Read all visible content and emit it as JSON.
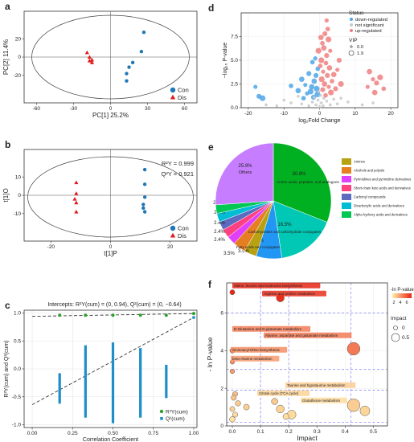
{
  "panel_labels": [
    "a",
    "b",
    "c",
    "d",
    "e",
    "f"
  ],
  "colors": {
    "con": "#1f77b4",
    "dis": "#e31a1c",
    "down": "#4fa6e8",
    "ns": "#c8c8c8",
    "up": "#f08080",
    "r2y": "#2ca02c",
    "q2": "#1f8fc8",
    "pie_palette": [
      "#b8a214",
      "#e67e22",
      "#e040fb",
      "#ff4081",
      "#5c6bc0",
      "#00bcd4",
      "#00c853",
      "#c77dff"
    ]
  },
  "legends": {
    "pca": [
      "Con",
      "Dis"
    ],
    "volcano_status_title": "Status",
    "volcano_status": [
      "down-regulated",
      "not significant",
      "up-regulated"
    ],
    "volcano_vip_title": "VIP",
    "volcano_vip": [
      "0.0",
      "1.9"
    ],
    "perm": [
      "R²Y(cum)",
      "Q²(cum)"
    ],
    "impact_color_title": "-ln P-value",
    "impact_color_ticks": [
      "2",
      "4",
      "6"
    ],
    "impact_size_title": "Impact",
    "impact_size": [
      "0",
      "0.5"
    ]
  },
  "chart_data": [
    {
      "panel": "a",
      "type": "scatter",
      "xlabel": "PC[1] 25.2%",
      "ylabel": "PC[2] 11.4%",
      "xlim": [
        -70,
        70
      ],
      "ylim": [
        -50,
        50
      ],
      "xticks": [
        -60,
        -30,
        0,
        30,
        60
      ],
      "yticks": [
        -20,
        0,
        20
      ],
      "grid": false,
      "legend": "bottom-right",
      "series": [
        {
          "name": "Con",
          "points": [
            [
              27,
              27
            ],
            [
              25,
              6
            ],
            [
              18,
              -6
            ],
            [
              15,
              -11
            ],
            [
              13,
              -18
            ],
            [
              13,
              -26
            ]
          ]
        },
        {
          "name": "Dis",
          "points": [
            [
              -19,
              5
            ],
            [
              -17,
              0
            ],
            [
              -15,
              -3
            ],
            [
              -17,
              -4
            ],
            [
              -15,
              -6
            ]
          ]
        }
      ]
    },
    {
      "panel": "b",
      "type": "scatter",
      "xlabel": "t[1]P",
      "ylabel": "t[1]O",
      "xlim": [
        -29,
        29
      ],
      "ylim": [
        -25,
        25
      ],
      "xticks": [
        -20,
        0,
        20
      ],
      "yticks": [
        -10,
        0,
        10
      ],
      "grid": false,
      "annotations": [
        "R²Y = 0.999",
        "Q²Y = 0.921"
      ],
      "legend": "bottom-right",
      "series": [
        {
          "name": "Con",
          "points": [
            [
              11.5,
              14
            ],
            [
              11.5,
              6
            ],
            [
              11.5,
              -1
            ],
            [
              11,
              -5
            ],
            [
              11,
              -7
            ],
            [
              11.5,
              -9
            ]
          ]
        },
        {
          "name": "Dis",
          "points": [
            [
              -11.5,
              7
            ],
            [
              -11.5,
              1
            ],
            [
              -12,
              -2
            ],
            [
              -11.5,
              -4
            ],
            [
              -11.5,
              -9
            ]
          ]
        }
      ]
    },
    {
      "panel": "c",
      "type": "scatter",
      "title": "Intercepts: R²Y(cum) = (0, 0.94), Q²(cum) = (0, −0.64)",
      "xlabel": "Correlation Coefficient",
      "ylabel": "R²Y(cum) and Q²(cum)",
      "xlim": [
        -0.05,
        1.02
      ],
      "ylim": [
        -1.05,
        1.05
      ],
      "xticks": [
        "0.00",
        "0.25",
        "0.50",
        "0.75",
        "1.00"
      ],
      "yticks": [
        "-1.0",
        "-0.5",
        "0.0",
        "0.5",
        "1.0"
      ],
      "grid": true,
      "legend": "bottom-right",
      "series": [
        {
          "name": "R²Y(cum)",
          "x": [
            0.17,
            0.33,
            0.5,
            0.67,
            0.83,
            1.0
          ],
          "y": [
            0.96,
            0.96,
            0.96,
            0.96,
            0.96,
            0.99
          ]
        },
        {
          "name": "Q²(cum)",
          "x": [
            0.17,
            0.33,
            0.5,
            0.67,
            0.83,
            1.0
          ],
          "y_range": [
            [
              -0.6,
              -0.1
            ],
            [
              -0.85,
              0.4
            ],
            [
              -0.95,
              0.45
            ],
            [
              -0.85,
              0.35
            ],
            [
              -0.5,
              0.05
            ],
            [
              0.92,
              0.92
            ]
          ]
        },
        {
          "name": "R²Y fit",
          "x": [
            0,
            1
          ],
          "y": [
            0.94,
            0.99
          ]
        },
        {
          "name": "Q² fit",
          "x": [
            0,
            1
          ],
          "y": [
            -0.64,
            0.92
          ]
        }
      ]
    },
    {
      "panel": "d",
      "type": "scatter",
      "xlabel": "log₂Fold Change",
      "ylabel": "−log₁₀ P-value",
      "xlim": [
        -22,
        22
      ],
      "ylim": [
        0,
        10
      ],
      "xticks": [
        -20,
        -10,
        0,
        10,
        20
      ],
      "yticks": [
        "0.0",
        "2.5",
        "5.0",
        "7.5"
      ],
      "grid": true,
      "legend": "top-right",
      "series": [
        {
          "name": "down-regulated",
          "points": [
            [
              -18,
              2.2
            ],
            [
              -17,
              1.2
            ],
            [
              -16,
              1.0
            ],
            [
              -8,
              2.3
            ],
            [
              -5,
              3.0
            ],
            [
              -4,
              2.4
            ],
            [
              -3,
              3.6
            ],
            [
              -2.5,
              1.7
            ],
            [
              -2,
              4.8
            ],
            [
              -1.5,
              2.8
            ],
            [
              -1.2,
              5.2
            ],
            [
              -1,
              3.4
            ],
            [
              -0.8,
              2.0
            ],
            [
              -0.5,
              4.1
            ],
            [
              -2.2,
              2.2
            ],
            [
              -3.5,
              1.5
            ],
            [
              -1.7,
              1.1
            ],
            [
              -0.6,
              1.4
            ],
            [
              -4.5,
              1.0
            ],
            [
              -6,
              1.8
            ]
          ]
        },
        {
          "name": "not significant",
          "points": [
            [
              -15,
              0.3
            ],
            [
              -10,
              0.8
            ],
            [
              -8,
              0.5
            ],
            [
              -5,
              0.4
            ],
            [
              -3,
              0.2
            ],
            [
              -2,
              0.6
            ],
            [
              -1,
              0.3
            ],
            [
              -0.5,
              0.8
            ],
            [
              0,
              0.1
            ],
            [
              0.5,
              0.5
            ],
            [
              1,
              0.2
            ],
            [
              2,
              0.7
            ],
            [
              3,
              0.3
            ],
            [
              5,
              0.4
            ],
            [
              8,
              0.6
            ],
            [
              12,
              0.3
            ],
            [
              -12,
              0.2
            ],
            [
              -1.5,
              1.1
            ],
            [
              0.3,
              1.3
            ],
            [
              1.2,
              1.0
            ],
            [
              -0.2,
              1.7
            ],
            [
              6,
              1.0
            ],
            [
              15,
              0.5
            ],
            [
              -6,
              1.2
            ],
            [
              4,
              0.9
            ]
          ]
        },
        {
          "name": "up-regulated",
          "points": [
            [
              2,
              9.2
            ],
            [
              1.5,
              7.8
            ],
            [
              2.5,
              7.2
            ],
            [
              0.8,
              6.8
            ],
            [
              1.2,
              6.3
            ],
            [
              3,
              6.0
            ],
            [
              2,
              5.5
            ],
            [
              0.5,
              5.0
            ],
            [
              1.8,
              4.7
            ],
            [
              2.8,
              4.2
            ],
            [
              1,
              3.8
            ],
            [
              2.2,
              3.4
            ],
            [
              0.6,
              3.0
            ],
            [
              3.5,
              2.8
            ],
            [
              1.4,
              2.5
            ],
            [
              2.6,
              2.2
            ],
            [
              0.9,
              1.9
            ],
            [
              3.2,
              1.6
            ],
            [
              1.7,
              1.3
            ],
            [
              4,
              3.5
            ],
            [
              5,
              4.0
            ],
            [
              4.5,
              2.0
            ],
            [
              -0.3,
              6.0
            ],
            [
              0.2,
              4.4
            ],
            [
              14,
              3.8
            ],
            [
              15,
              3.0
            ],
            [
              16,
              2.6
            ],
            [
              17,
              3.2
            ],
            [
              18,
              2.0
            ],
            [
              15.5,
              1.6
            ],
            [
              13.5,
              2.2
            ],
            [
              5.5,
              5.0
            ],
            [
              6,
              2.5
            ],
            [
              2.3,
              8.3
            ],
            [
              0.4,
              7.4
            ]
          ]
        }
      ]
    },
    {
      "panel": "e",
      "type": "pie",
      "labels": [
        "Amines",
        "Alcohols and polyols",
        "Pyrimidines and pyrimidine derivatives",
        "Short-chain keto acids and derivatives",
        "Carbonyl compounds",
        "Dicarboxylic acids and derivatives",
        "Alpha hydroxy acids and derivatives",
        "Amino acids, peptides, and analogues",
        "Carbohydrates and carbohydrate conjugates",
        "Fatty acids and conjugates",
        "Others"
      ],
      "slices": [
        {
          "label": "Amino acids, peptides, and analogues",
          "value": 30.8
        },
        {
          "label": "Carbohydrates and carbohydrate conjugates",
          "value": 16.5
        },
        {
          "label": "Fatty acids and conjugates",
          "value": 7.1
        },
        {
          "label": "Amines",
          "value": 3.5
        },
        {
          "label": "Alcohols and polyols",
          "value": 3.5
        },
        {
          "label": "Pyrimidines and pyrimidine derivatives",
          "value": 2.4
        },
        {
          "label": "Short-chain keto acids and derivatives",
          "value": 2.4
        },
        {
          "label": "Carbonyl compounds",
          "value": 2.4
        },
        {
          "label": "Dicarboxylic acids and derivatives",
          "value": 2.4
        },
        {
          "label": "Alpha hydroxy acids and derivatives",
          "value": 2.4
        },
        {
          "label": "Others",
          "value": 25.9
        }
      ],
      "value_labels": [
        "30.8%",
        "16.5%",
        "7.1%",
        "3.5%",
        "3.5%",
        "2.4%",
        "2.4%",
        "2.4%",
        "2.4%",
        "2.4%",
        "25.9%"
      ],
      "legend": "right"
    },
    {
      "panel": "f",
      "type": "scatter",
      "xlabel": "Impact",
      "ylabel": "- ln P-value",
      "xlim": [
        -0.02,
        0.55
      ],
      "ylim": [
        0,
        7.6
      ],
      "xticks": [
        "0.0",
        "0.1",
        "0.2",
        "0.3",
        "0.4",
        "0.5"
      ],
      "yticks": [
        "0",
        "2",
        "4",
        "6"
      ],
      "grid": true,
      "legend": "right",
      "points": [
        {
          "label": "Valine, leucine and isoleucine biosynthesis",
          "x": 0.0,
          "y": 7.1,
          "impact": 0.05
        },
        {
          "label": "Arginine and proline metabolism",
          "x": 0.17,
          "y": 6.8,
          "impact": 0.2
        },
        {
          "label": "D-Glutamine and D-glutamate metabolism",
          "x": 0.0,
          "y": 4.0,
          "impact": 0.05
        },
        {
          "label": "Alanine, aspartate and glutamate metabolism",
          "x": 0.43,
          "y": 4.1,
          "impact": 0.45
        },
        {
          "label": "Aminoacyl-tRNA biosynthesis",
          "x": 0.0,
          "y": 3.4,
          "impact": 0.02
        },
        {
          "label": "beta-Alanine metabolism",
          "x": 0.0,
          "y": 2.9,
          "impact": 0.03
        },
        {
          "label": "Taurine and hypotaurine metabolism",
          "x": 0.43,
          "y": 1.1,
          "impact": 0.45
        },
        {
          "label": "Citrate cycle (TCA cycle)",
          "x": 0.17,
          "y": 0.9,
          "impact": 0.2
        },
        {
          "label": "Glutathione metabolism",
          "x": 0.21,
          "y": 0.6,
          "impact": 0.25
        },
        {
          "label": "",
          "x": 0.01,
          "y": 1.7,
          "impact": 0.05
        },
        {
          "label": "",
          "x": 0.005,
          "y": 1.5,
          "impact": 0.06
        },
        {
          "label": "",
          "x": 0.02,
          "y": 1.2,
          "impact": 0.07
        },
        {
          "label": "",
          "x": 0.0,
          "y": 0.9,
          "impact": 0.05
        },
        {
          "label": "",
          "x": 0.01,
          "y": 0.6,
          "impact": 0.06
        },
        {
          "label": "",
          "x": 0.0,
          "y": 0.35,
          "impact": 0.08
        },
        {
          "label": "",
          "x": 0.05,
          "y": 1.0,
          "impact": 0.09
        },
        {
          "label": "",
          "x": 0.15,
          "y": 1.3,
          "impact": 0.12
        },
        {
          "label": "",
          "x": 0.19,
          "y": 0.5,
          "impact": 0.1
        },
        {
          "label": "",
          "x": 0.47,
          "y": 0.8,
          "impact": 0.3
        }
      ]
    }
  ]
}
